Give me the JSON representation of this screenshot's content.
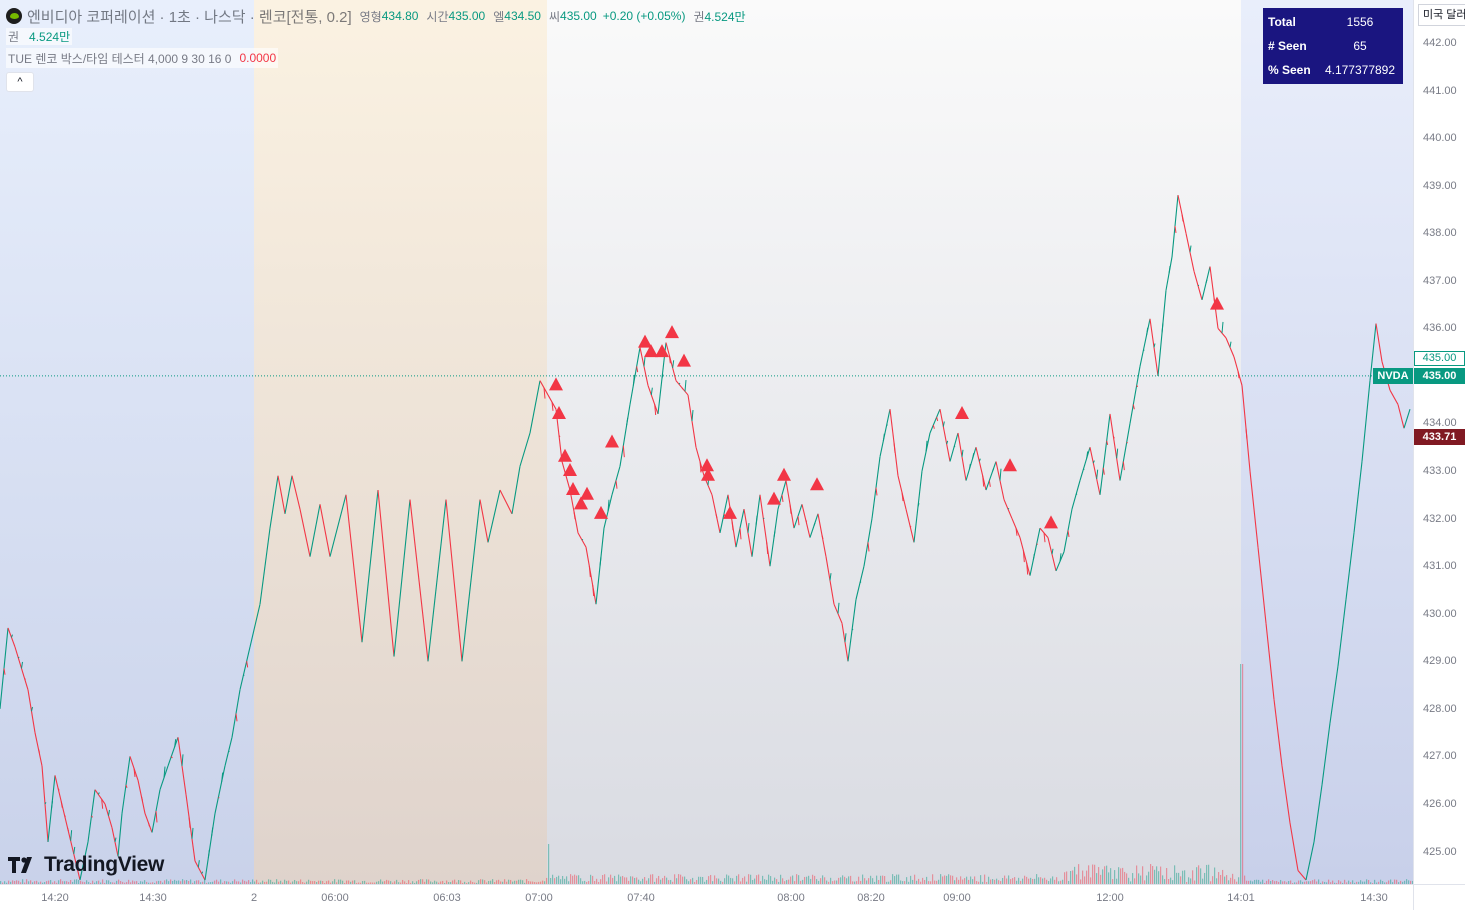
{
  "legend": {
    "symbol_title": "엔비디아 코퍼레이션 · 1초 · 나스닥 · 렌코[전통, 0.2]",
    "open_label": "영형",
    "open_value": "434.80",
    "high_label": "시간",
    "high_value": "435.00",
    "low_label": "엘",
    "low_value": "434.50",
    "close_label": "씨",
    "close_value": "435.00",
    "change": "+0.20 (+0.05%)",
    "volume_label": "권",
    "volume_value": "4.524만",
    "volume_row_label": "권",
    "volume_row_value": "4.524만",
    "indicator_name": "TUE 렌코 박스/타임 테스터 4,000 9 30 16 0",
    "indicator_value": "0.0000",
    "collapse_icon": "^"
  },
  "stats": {
    "rows": [
      {
        "label": "Total",
        "value": "1556"
      },
      {
        "label": "# Seen",
        "value": "65"
      },
      {
        "label": "% Seen",
        "value": "4.177377892"
      }
    ],
    "bg_color": "#1a1580"
  },
  "price_scale": {
    "currency_button": "미국 달러",
    "ticks": [
      "442.00",
      "441.00",
      "440.00",
      "439.00",
      "438.00",
      "437.00",
      "436.00",
      "435.00",
      "434.00",
      "433.00",
      "432.00",
      "431.00",
      "430.00",
      "429.00",
      "428.00",
      "427.00",
      "426.00",
      "425.00"
    ],
    "last_price_label": "435.00",
    "symbol_badge": "NVDA",
    "current_price_label": "435.00",
    "countdown_price_label": "433.71"
  },
  "time_axis": {
    "ticks": [
      "14:20",
      "14:30",
      "2",
      "06:00",
      "06:03",
      "07:00",
      "07:40",
      "08:00",
      "08:20",
      "09:00",
      "12:00",
      "14:01",
      "14:30"
    ]
  },
  "branding": {
    "logo_text": "TradingView"
  },
  "chart_data": {
    "type": "line",
    "chart_kind": "renko",
    "symbol": "NVDA",
    "box_size": 0.2,
    "ylim": [
      424.4,
      442.9
    ],
    "x": [
      "14:20",
      "14:30",
      "2",
      "06:00",
      "06:03",
      "07:00",
      "07:40",
      "08:00",
      "08:20",
      "09:00",
      "12:00",
      "14:01",
      "14:30"
    ],
    "price_path": [
      [
        0,
        428.0
      ],
      [
        8,
        429.7
      ],
      [
        15,
        429.3
      ],
      [
        28,
        428.4
      ],
      [
        35,
        427.5
      ],
      [
        42,
        426.8
      ],
      [
        48,
        425.2
      ],
      [
        55,
        426.6
      ],
      [
        80,
        424.4
      ],
      [
        88,
        425.2
      ],
      [
        95,
        426.3
      ],
      [
        105,
        426.0
      ],
      [
        112,
        425.5
      ],
      [
        118,
        424.9
      ],
      [
        122,
        425.8
      ],
      [
        130,
        427.0
      ],
      [
        138,
        426.5
      ],
      [
        145,
        425.8
      ],
      [
        152,
        425.4
      ],
      [
        160,
        426.3
      ],
      [
        168,
        426.8
      ],
      [
        178,
        427.4
      ],
      [
        186,
        426.2
      ],
      [
        195,
        424.8
      ],
      [
        205,
        424.4
      ],
      [
        215,
        425.8
      ],
      [
        225,
        426.8
      ],
      [
        232,
        427.4
      ],
      [
        240,
        428.4
      ],
      [
        250,
        429.3
      ],
      [
        260,
        430.2
      ],
      [
        270,
        431.8
      ],
      [
        278,
        432.9
      ],
      [
        285,
        432.1
      ],
      [
        292,
        432.9
      ],
      [
        300,
        432.2
      ],
      [
        310,
        431.2
      ],
      [
        320,
        432.3
      ],
      [
        330,
        431.2
      ],
      [
        346,
        432.5
      ],
      [
        362,
        429.4
      ],
      [
        378,
        432.6
      ],
      [
        394,
        429.1
      ],
      [
        410,
        432.4
      ],
      [
        428,
        429.0
      ],
      [
        446,
        432.4
      ],
      [
        462,
        429.0
      ],
      [
        480,
        432.4
      ],
      [
        488,
        431.5
      ],
      [
        500,
        432.6
      ],
      [
        512,
        432.1
      ],
      [
        520,
        433.1
      ],
      [
        530,
        433.8
      ],
      [
        540,
        434.9
      ],
      [
        548,
        434.6
      ],
      [
        556,
        434.3
      ],
      [
        562,
        433.2
      ],
      [
        570,
        432.6
      ],
      [
        578,
        431.7
      ],
      [
        586,
        431.4
      ],
      [
        596,
        430.2
      ],
      [
        604,
        431.8
      ],
      [
        612,
        432.5
      ],
      [
        620,
        433.1
      ],
      [
        630,
        434.4
      ],
      [
        640,
        435.6
      ],
      [
        648,
        434.8
      ],
      [
        658,
        434.2
      ],
      [
        666,
        435.7
      ],
      [
        676,
        434.9
      ],
      [
        688,
        434.6
      ],
      [
        696,
        433.5
      ],
      [
        704,
        432.9
      ],
      [
        712,
        432.5
      ],
      [
        720,
        431.7
      ],
      [
        728,
        432.5
      ],
      [
        736,
        431.4
      ],
      [
        744,
        432.2
      ],
      [
        752,
        431.2
      ],
      [
        760,
        432.5
      ],
      [
        770,
        431.0
      ],
      [
        778,
        432.2
      ],
      [
        786,
        432.8
      ],
      [
        794,
        431.8
      ],
      [
        802,
        432.3
      ],
      [
        810,
        431.6
      ],
      [
        818,
        432.1
      ],
      [
        826,
        431.2
      ],
      [
        834,
        430.2
      ],
      [
        842,
        429.8
      ],
      [
        848,
        429.0
      ],
      [
        856,
        430.3
      ],
      [
        864,
        431.0
      ],
      [
        872,
        432.0
      ],
      [
        880,
        433.3
      ],
      [
        890,
        434.3
      ],
      [
        898,
        432.9
      ],
      [
        906,
        432.2
      ],
      [
        914,
        431.5
      ],
      [
        922,
        433.0
      ],
      [
        930,
        433.8
      ],
      [
        940,
        434.3
      ],
      [
        950,
        433.2
      ],
      [
        958,
        433.8
      ],
      [
        966,
        432.8
      ],
      [
        976,
        433.5
      ],
      [
        986,
        432.6
      ],
      [
        996,
        433.2
      ],
      [
        1004,
        432.4
      ],
      [
        1012,
        432.0
      ],
      [
        1020,
        431.6
      ],
      [
        1030,
        430.8
      ],
      [
        1040,
        431.8
      ],
      [
        1048,
        431.6
      ],
      [
        1056,
        430.9
      ],
      [
        1064,
        431.3
      ],
      [
        1072,
        432.2
      ],
      [
        1080,
        432.8
      ],
      [
        1090,
        433.5
      ],
      [
        1100,
        432.5
      ],
      [
        1110,
        434.2
      ],
      [
        1120,
        432.8
      ],
      [
        1130,
        434.0
      ],
      [
        1140,
        435.2
      ],
      [
        1150,
        436.2
      ],
      [
        1158,
        435.0
      ],
      [
        1166,
        436.8
      ],
      [
        1172,
        437.5
      ],
      [
        1178,
        438.8
      ],
      [
        1186,
        438.0
      ],
      [
        1194,
        437.2
      ],
      [
        1202,
        436.6
      ],
      [
        1210,
        437.3
      ],
      [
        1218,
        436.0
      ],
      [
        1226,
        435.8
      ],
      [
        1234,
        435.4
      ],
      [
        1242,
        434.8
      ],
      [
        1250,
        433.0
      ],
      [
        1258,
        431.4
      ],
      [
        1266,
        429.8
      ],
      [
        1274,
        428.2
      ],
      [
        1282,
        426.8
      ],
      [
        1290,
        425.6
      ],
      [
        1298,
        424.6
      ],
      [
        1306,
        424.4
      ],
      [
        1314,
        425.2
      ],
      [
        1322,
        426.4
      ],
      [
        1330,
        427.7
      ],
      [
        1338,
        428.9
      ],
      [
        1346,
        430.3
      ],
      [
        1354,
        431.7
      ],
      [
        1362,
        433.2
      ],
      [
        1370,
        434.9
      ],
      [
        1376,
        436.1
      ],
      [
        1382,
        435.3
      ],
      [
        1390,
        434.7
      ],
      [
        1398,
        434.4
      ],
      [
        1404,
        433.9
      ],
      [
        1410,
        434.3
      ]
    ],
    "markers": [
      {
        "x": 556,
        "y": 434.8
      },
      {
        "x": 559,
        "y": 434.2
      },
      {
        "x": 565,
        "y": 433.3
      },
      {
        "x": 570,
        "y": 433.0
      },
      {
        "x": 573,
        "y": 432.6
      },
      {
        "x": 581,
        "y": 432.3
      },
      {
        "x": 587,
        "y": 432.5
      },
      {
        "x": 601,
        "y": 432.1
      },
      {
        "x": 612,
        "y": 433.6
      },
      {
        "x": 645,
        "y": 435.7
      },
      {
        "x": 651,
        "y": 435.5
      },
      {
        "x": 662,
        "y": 435.5
      },
      {
        "x": 672,
        "y": 435.9
      },
      {
        "x": 684,
        "y": 435.3
      },
      {
        "x": 707,
        "y": 433.1
      },
      {
        "x": 708,
        "y": 432.9
      },
      {
        "x": 730,
        "y": 432.1
      },
      {
        "x": 774,
        "y": 432.4
      },
      {
        "x": 784,
        "y": 432.9
      },
      {
        "x": 817,
        "y": 432.7
      },
      {
        "x": 962,
        "y": 434.2
      },
      {
        "x": 1010,
        "y": 433.1
      },
      {
        "x": 1051,
        "y": 431.9
      },
      {
        "x": 1217,
        "y": 436.5
      }
    ],
    "current_price": 435.0,
    "sessions": [
      {
        "from": 0,
        "to": 254,
        "kind": "post-market"
      },
      {
        "from": 254,
        "to": 547,
        "kind": "pre-market-early"
      },
      {
        "from": 547,
        "to": 1241,
        "kind": "regular"
      },
      {
        "from": 1241,
        "to": 1413,
        "kind": "post-market"
      }
    ],
    "up_color": "#089981",
    "down_color": "#f23645",
    "marker_color": "#f23645"
  }
}
